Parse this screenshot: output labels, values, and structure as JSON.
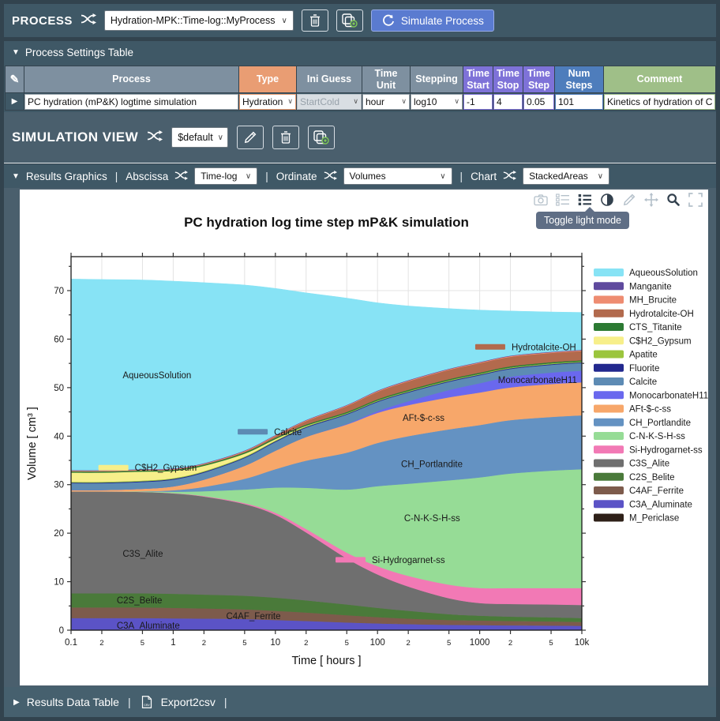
{
  "process_bar": {
    "title": "PROCESS",
    "select_value": "Hydration-MPK::Time-log::MyProcess",
    "simulate_label": "Simulate Process"
  },
  "settings": {
    "section_title": "Process Settings Table",
    "headers": {
      "process": "Process",
      "type": "Type",
      "ini_guess": "Ini Guess",
      "time_unit": "Time Unit",
      "stepping": "Stepping",
      "time_start": "Time Start",
      "time_stop": "Time Stop",
      "time_step": "Time Step",
      "num_steps": "Num Steps",
      "comment": "Comment"
    },
    "row": {
      "process": "PC hydration (mP&K) logtime simulation",
      "type": "Hydration",
      "ini_guess": "StartCold",
      "time_unit": "hour",
      "stepping": "log10",
      "time_start": "-1",
      "time_stop": "4",
      "time_step": "0.05",
      "num_steps": "101",
      "comment": "Kinetics of hydration of CEM-"
    }
  },
  "simulation_view": {
    "title": "SIMULATION VIEW",
    "select_value": "$default"
  },
  "results_bar": {
    "graphics_label": "Results Graphics",
    "abscissa_label": "Abscissa",
    "abscissa_value": "Time-log",
    "ordinate_label": "Ordinate",
    "ordinate_value": "Volumes",
    "chart_label": "Chart",
    "chart_value": "StackedAreas"
  },
  "tooltip": "Toggle light mode",
  "bottom_bar": {
    "results_table_label": "Results Data Table",
    "export_label": "Export2csv"
  },
  "chart_data": {
    "type": "area",
    "stacked": true,
    "title": "PC hydration log time step mP&K simulation",
    "xlabel": "Time [ hours ]",
    "ylabel": "Volume [ cm³ ]",
    "x_scale": "log",
    "ylim": [
      0,
      77
    ],
    "grid": true,
    "legend_position": "right",
    "x": [
      0.1,
      0.2,
      0.5,
      1,
      2,
      5,
      10,
      20,
      50,
      100,
      200,
      500,
      1000,
      2000,
      5000,
      10000
    ],
    "x_ticks": [
      {
        "v": 0.1,
        "label": "0.1",
        "major": true
      },
      {
        "v": 0.2,
        "label": "2",
        "major": false
      },
      {
        "v": 0.5,
        "label": "5",
        "major": false
      },
      {
        "v": 1,
        "label": "1",
        "major": true
      },
      {
        "v": 2,
        "label": "2",
        "major": false
      },
      {
        "v": 5,
        "label": "5",
        "major": false
      },
      {
        "v": 10,
        "label": "10",
        "major": true
      },
      {
        "v": 20,
        "label": "2",
        "major": false
      },
      {
        "v": 50,
        "label": "5",
        "major": false
      },
      {
        "v": 100,
        "label": "100",
        "major": true
      },
      {
        "v": 200,
        "label": "2",
        "major": false
      },
      {
        "v": 500,
        "label": "5",
        "major": false
      },
      {
        "v": 1000,
        "label": "1000",
        "major": true
      },
      {
        "v": 2000,
        "label": "2",
        "major": false
      },
      {
        "v": 5000,
        "label": "5",
        "major": false
      },
      {
        "v": 10000,
        "label": "10k",
        "major": true
      }
    ],
    "y_ticks": [
      0,
      10,
      20,
      30,
      40,
      50,
      60,
      70
    ],
    "series": [
      {
        "name": "M_Periclase",
        "color": "#2e2018",
        "values": [
          0.1,
          0.1,
          0.1,
          0.1,
          0.1,
          0.1,
          0.1,
          0.1,
          0.1,
          0.1,
          0.1,
          0.1,
          0.1,
          0.1,
          0.1,
          0.1
        ]
      },
      {
        "name": "C3A_Aluminate",
        "color": "#5b53c6",
        "values": [
          2.4,
          2.4,
          2.4,
          2.35,
          2.3,
          2.2,
          2.0,
          1.8,
          1.5,
          1.3,
          1.15,
          1.0,
          0.95,
          0.9,
          0.85,
          0.8
        ]
      },
      {
        "name": "C4AF_Ferrite",
        "color": "#7d5b4c",
        "values": [
          2.2,
          2.2,
          2.2,
          2.15,
          2.1,
          2.0,
          1.9,
          1.75,
          1.5,
          1.3,
          1.15,
          1.0,
          0.95,
          0.9,
          0.85,
          0.8
        ]
      },
      {
        "name": "C2S_Belite",
        "color": "#4a7a3a",
        "values": [
          2.9,
          2.9,
          2.9,
          2.9,
          2.85,
          2.8,
          2.7,
          2.5,
          2.2,
          1.9,
          1.6,
          1.2,
          1.0,
          0.9,
          0.85,
          0.8
        ]
      },
      {
        "name": "C3S_Alite",
        "color": "#6f6f6f",
        "values": [
          21,
          21,
          20.9,
          20.7,
          20.2,
          18.9,
          17.1,
          14.0,
          9.5,
          6.9,
          5.0,
          3.3,
          2.6,
          2.6,
          2.65,
          2.7
        ]
      },
      {
        "name": "Si-Hydrogarnet-ss",
        "color": "#f279b5",
        "values": [
          0,
          0,
          0,
          0.05,
          0.1,
          0.2,
          0.4,
          0.7,
          1.2,
          1.7,
          2.2,
          2.8,
          3.1,
          3.3,
          3.4,
          3.5
        ]
      },
      {
        "name": "C-N-K-S-H-ss",
        "color": "#96dc96",
        "values": [
          0,
          0,
          0.1,
          0.3,
          1.0,
          2.8,
          5.2,
          8.5,
          13,
          16.5,
          19,
          21.5,
          22.8,
          23.6,
          24.2,
          24.5
        ]
      },
      {
        "name": "CH_Portlandite",
        "color": "#6492c2",
        "values": [
          0,
          0,
          0.05,
          0.3,
          0.9,
          2.2,
          3.8,
          5.6,
          7.6,
          8.9,
          9.8,
          10.5,
          10.8,
          11.0,
          11.05,
          11.1
        ]
      },
      {
        "name": "AFt-$-c-ss",
        "color": "#f7a76a",
        "values": [
          0.3,
          0.3,
          0.5,
          0.8,
          1.5,
          2.7,
          3.8,
          4.9,
          5.8,
          6.2,
          6.4,
          6.6,
          6.7,
          6.75,
          6.8,
          6.8
        ]
      },
      {
        "name": "MonocarbonateH11",
        "color": "#6a68ee",
        "values": [
          0,
          0,
          0,
          0,
          0,
          0,
          0,
          0,
          0.1,
          0.35,
          0.8,
          1.5,
          1.9,
          2.2,
          2.35,
          2.4
        ]
      },
      {
        "name": "Calcite",
        "color": "#5d8bb4",
        "values": [
          1.4,
          1.4,
          1.4,
          1.4,
          1.45,
          1.6,
          1.8,
          1.9,
          1.95,
          1.9,
          1.8,
          1.7,
          1.65,
          1.6,
          1.6,
          1.6
        ]
      },
      {
        "name": "Fluorite",
        "color": "#22288e",
        "values": [
          0.15,
          0.15,
          0.15,
          0.15,
          0.15,
          0.15,
          0.15,
          0.15,
          0.15,
          0.15,
          0.15,
          0.15,
          0.15,
          0.15,
          0.15,
          0.15
        ]
      },
      {
        "name": "Apatite",
        "color": "#9bc53d",
        "values": [
          0.15,
          0.15,
          0.15,
          0.15,
          0.15,
          0.15,
          0.15,
          0.15,
          0.15,
          0.15,
          0.15,
          0.15,
          0.15,
          0.15,
          0.15,
          0.15
        ]
      },
      {
        "name": "C$H2_Gypsum",
        "color": "#f7ef8a",
        "values": [
          1.9,
          1.9,
          1.85,
          1.5,
          1.1,
          0.6,
          0.3,
          0.1,
          0,
          0,
          0,
          0,
          0,
          0,
          0,
          0
        ]
      },
      {
        "name": "CTS_Titanite",
        "color": "#2c7a33",
        "values": [
          0.25,
          0.25,
          0.25,
          0.25,
          0.25,
          0.25,
          0.25,
          0.25,
          0.25,
          0.25,
          0.25,
          0.25,
          0.25,
          0.25,
          0.25,
          0.25
        ]
      },
      {
        "name": "Hydrotalcite-OH",
        "color": "#b26a4d",
        "values": [
          0,
          0,
          0,
          0,
          0.05,
          0.15,
          0.35,
          0.7,
          1.2,
          1.55,
          1.75,
          1.9,
          1.95,
          1.95,
          1.9,
          1.9
        ]
      },
      {
        "name": "MH_Brucite",
        "color": "#ee8c71",
        "values": [
          0.15,
          0.15,
          0.15,
          0.15,
          0.15,
          0.15,
          0.15,
          0.15,
          0.15,
          0.15,
          0.15,
          0.15,
          0.15,
          0.15,
          0.15,
          0.15
        ]
      },
      {
        "name": "Manganite",
        "color": "#5f4a9e",
        "values": [
          0.1,
          0.1,
          0.1,
          0.1,
          0.1,
          0.1,
          0.1,
          0.1,
          0.1,
          0.1,
          0.1,
          0.1,
          0.1,
          0.1,
          0.1,
          0.1
        ]
      },
      {
        "name": "AqueousSolution",
        "color": "#87e3f5",
        "values": [
          39.4,
          39.3,
          39.0,
          38.6,
          37.2,
          34.1,
          30.2,
          26.2,
          22.0,
          18.1,
          15.3,
          12.4,
          10.7,
          9.2,
          8.2,
          7.7
        ]
      }
    ],
    "annotations": [
      {
        "label": "AqueousSolution",
        "x": 0.32,
        "y": 52.6,
        "swatch": null
      },
      {
        "label": "C$H2_Gypsum",
        "x": 0.42,
        "y": 33.5,
        "swatch": "#f7ef8a"
      },
      {
        "label": "Calcite",
        "x": 9.7,
        "y": 40.9,
        "swatch": "#5d8bb4"
      },
      {
        "label": "Hydrotalcite-OH",
        "x": 2050,
        "y": 58.4,
        "swatch": "#b26a4d"
      },
      {
        "label": "MonocarbonateH11",
        "x": 1510,
        "y": 51.6,
        "swatch": null
      },
      {
        "label": "AFt-$-c-ss",
        "x": 176,
        "y": 43.8,
        "swatch": null
      },
      {
        "label": "CH_Portlandite",
        "x": 170,
        "y": 34.3,
        "swatch": null
      },
      {
        "label": "C-N-K-S-H-ss",
        "x": 182,
        "y": 23.1,
        "swatch": null
      },
      {
        "label": "Si-Hydrogarnet-ss",
        "x": 88,
        "y": 14.5,
        "swatch": "#f279b5"
      },
      {
        "label": "C3S_Alite",
        "x": 0.32,
        "y": 15.8,
        "swatch": null
      },
      {
        "label": "C2S_Belite",
        "x": 0.28,
        "y": 6.2,
        "swatch": null
      },
      {
        "label": "C4AF_Ferrite",
        "x": 3.3,
        "y": 2.9,
        "swatch": null
      },
      {
        "label": "C3A_Aluminate",
        "x": 0.28,
        "y": 1.0,
        "swatch": null
      }
    ]
  }
}
